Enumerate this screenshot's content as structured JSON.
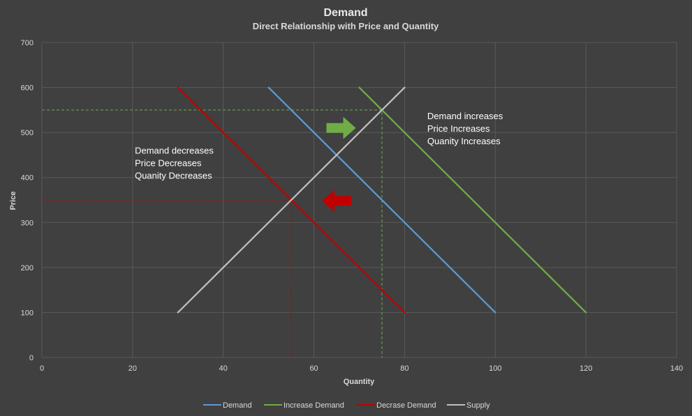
{
  "chart_data": {
    "type": "line",
    "title": "Demand",
    "subtitle": "Direct Relationship with Price and Quantity",
    "xlabel": "Quantity",
    "ylabel": "Price",
    "xlim": [
      0,
      140
    ],
    "ylim": [
      0,
      700
    ],
    "x_ticks": [
      0,
      20,
      40,
      60,
      80,
      100,
      120,
      140
    ],
    "y_ticks": [
      0,
      100,
      200,
      300,
      400,
      500,
      600,
      700
    ],
    "grid": true,
    "legend_position": "bottom",
    "series": [
      {
        "name": "Demand",
        "color": "#5b9bd5",
        "points": [
          [
            50,
            600
          ],
          [
            100,
            100
          ]
        ]
      },
      {
        "name": "Increase Demand",
        "color": "#70ad47",
        "points": [
          [
            70,
            600
          ],
          [
            120,
            100
          ]
        ]
      },
      {
        "name": "Decrase Demand",
        "color": "#c00000",
        "points": [
          [
            30,
            600
          ],
          [
            80,
            100
          ]
        ]
      },
      {
        "name": "Supply",
        "color": "#bfbfbf",
        "points": [
          [
            30,
            100
          ],
          [
            80,
            600
          ]
        ]
      }
    ],
    "guide_lines": [
      {
        "color": "#70ad47",
        "points": [
          [
            0,
            550
          ],
          [
            75,
            550
          ],
          [
            75,
            0
          ]
        ]
      },
      {
        "color": "#c00000",
        "points": [
          [
            0,
            350
          ],
          [
            55,
            350
          ],
          [
            55,
            0
          ]
        ]
      }
    ],
    "arrows": [
      {
        "direction": "right",
        "color": "#70ad47",
        "x": 66,
        "y": 510
      },
      {
        "direction": "left",
        "color": "#c00000",
        "x": 65,
        "y": 348
      }
    ],
    "annotations": [
      {
        "lines": [
          "Demand increases",
          "Price Increases",
          "Quanity Increases"
        ],
        "x": 85,
        "y": 530
      },
      {
        "lines": [
          "Demand decreases",
          "Price Decreases",
          "Quanity Decreases"
        ],
        "x": 20.5,
        "y": 453
      }
    ]
  }
}
